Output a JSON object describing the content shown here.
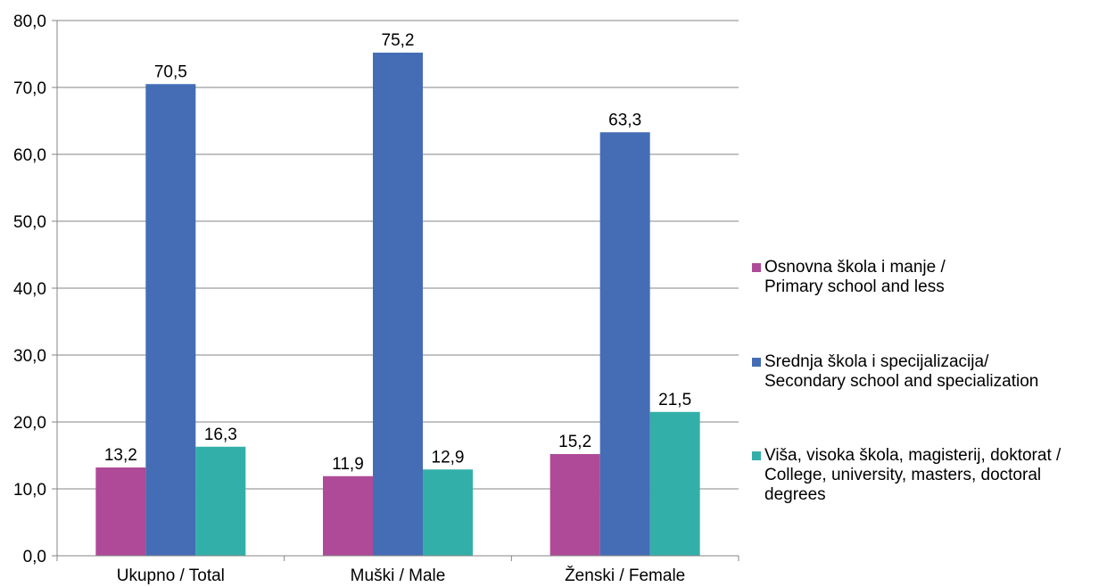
{
  "chart_data": {
    "type": "bar",
    "categories": [
      "Ukupno / Total",
      "Muški / Male",
      "Ženski / Female"
    ],
    "series": [
      {
        "name": "Osnovna škola i manje /\nPrimary school and less",
        "color": "#AE4A97",
        "values": [
          13.2,
          11.9,
          15.2
        ]
      },
      {
        "name": "Srednja škola i specijalizacija/\nSecondary school and specialization",
        "color": "#446DB5",
        "values": [
          70.5,
          75.2,
          63.3
        ]
      },
      {
        "name": "Viša, visoka škola, magisterij, doktorat /\nCollege, university, masters, doctoral\ndegrees",
        "color": "#33AFA9",
        "values": [
          16.3,
          12.9,
          21.5
        ]
      }
    ],
    "value_labels": [
      [
        "13,2",
        "11,9",
        "15,2"
      ],
      [
        "70,5",
        "75,2",
        "63,3"
      ],
      [
        "16,3",
        "12,9",
        "21,5"
      ]
    ],
    "yticks": [
      "0,0",
      "10,0",
      "20,0",
      "30,0",
      "40,0",
      "50,0",
      "60,0",
      "70,0",
      "80,0"
    ],
    "ylim": [
      0,
      80
    ],
    "grid": true,
    "legend_position": "right"
  }
}
